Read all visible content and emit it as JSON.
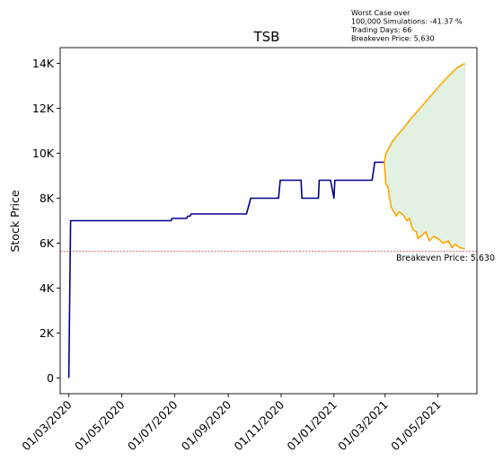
{
  "chart_data": {
    "type": "line",
    "title": "TSB",
    "xlabel": "",
    "ylabel": "Stock Price",
    "x_tick_labels": [
      "01/03/2020",
      "01/05/2020",
      "01/07/2020",
      "01/09/2020",
      "01/11/2020",
      "01/01/2021",
      "01/03/2021",
      "01/05/2021"
    ],
    "x_ticks": [
      "2020-03-01",
      "2020-05-01",
      "2020-07-01",
      "2020-09-01",
      "2020-11-01",
      "2021-01-01",
      "2021-03-01",
      "2021-05-01"
    ],
    "y_tick_labels": [
      "0",
      "2K",
      "4K",
      "6K",
      "8K",
      "10K",
      "12K",
      "14K"
    ],
    "y_ticks": [
      0,
      2000,
      4000,
      6000,
      8000,
      10000,
      12000,
      14000
    ],
    "xlim": [
      "2020-02-20",
      "2021-06-15"
    ],
    "ylim": [
      -700,
      14700
    ],
    "grid": false,
    "annotation_lines": [
      "Worst Case over",
      "100,000 Simulations: -41.37 %",
      "Trading Days: 66",
      "Breakeven Price: 5,630"
    ],
    "breakeven": {
      "value": 5630,
      "label": "Breakeven Price: 5,630",
      "color": "#d62728"
    },
    "colors": {
      "history": "#00008b",
      "simulation": "#ffa500",
      "band_fill": "#e3f1e3"
    },
    "series": [
      {
        "role": "history",
        "points": [
          [
            "2020-03-01",
            0
          ],
          [
            "2020-03-03",
            7000
          ],
          [
            "2020-06-27",
            7000
          ],
          [
            "2020-06-28",
            7100
          ],
          [
            "2020-07-15",
            7100
          ],
          [
            "2020-07-16",
            7200
          ],
          [
            "2020-07-19",
            7200
          ],
          [
            "2020-07-20",
            7300
          ],
          [
            "2020-09-22",
            7300
          ],
          [
            "2020-09-27",
            8000
          ],
          [
            "2020-10-29",
            8000
          ],
          [
            "2020-10-31",
            8800
          ],
          [
            "2020-11-24",
            8800
          ],
          [
            "2020-11-25",
            8000
          ],
          [
            "2020-12-14",
            8000
          ],
          [
            "2020-12-15",
            8800
          ],
          [
            "2020-12-28",
            8800
          ],
          [
            "2021-01-01",
            8000
          ],
          [
            "2021-01-02",
            8800
          ],
          [
            "2021-02-14",
            8800
          ],
          [
            "2021-02-17",
            9600
          ],
          [
            "2021-02-28",
            9600
          ]
        ]
      },
      {
        "role": "simulation-upper",
        "points": [
          [
            "2021-02-28",
            9600
          ],
          [
            "2021-03-02",
            10000
          ],
          [
            "2021-03-05",
            10200
          ],
          [
            "2021-03-09",
            10500
          ],
          [
            "2021-03-15",
            10800
          ],
          [
            "2021-03-22",
            11100
          ],
          [
            "2021-03-30",
            11500
          ],
          [
            "2021-04-08",
            11900
          ],
          [
            "2021-04-17",
            12300
          ],
          [
            "2021-04-26",
            12700
          ],
          [
            "2021-05-05",
            13100
          ],
          [
            "2021-05-15",
            13500
          ],
          [
            "2021-05-23",
            13800
          ],
          [
            "2021-06-01",
            14000
          ]
        ]
      },
      {
        "role": "simulation-lower",
        "points": [
          [
            "2021-02-28",
            9600
          ],
          [
            "2021-03-02",
            8600
          ],
          [
            "2021-03-04",
            8550
          ],
          [
            "2021-03-08",
            7600
          ],
          [
            "2021-03-14",
            7200
          ],
          [
            "2021-03-17",
            7400
          ],
          [
            "2021-03-22",
            7250
          ],
          [
            "2021-03-26",
            7000
          ],
          [
            "2021-03-29",
            7100
          ],
          [
            "2021-04-02",
            6600
          ],
          [
            "2021-04-06",
            6500
          ],
          [
            "2021-04-08",
            6200
          ],
          [
            "2021-04-11",
            6300
          ],
          [
            "2021-04-17",
            6500
          ],
          [
            "2021-04-21",
            6100
          ],
          [
            "2021-04-26",
            6300
          ],
          [
            "2021-05-01",
            6200
          ],
          [
            "2021-05-07",
            6000
          ],
          [
            "2021-05-13",
            6100
          ],
          [
            "2021-05-17",
            5800
          ],
          [
            "2021-05-21",
            5950
          ],
          [
            "2021-05-26",
            5800
          ],
          [
            "2021-06-01",
            5750
          ]
        ]
      }
    ]
  }
}
